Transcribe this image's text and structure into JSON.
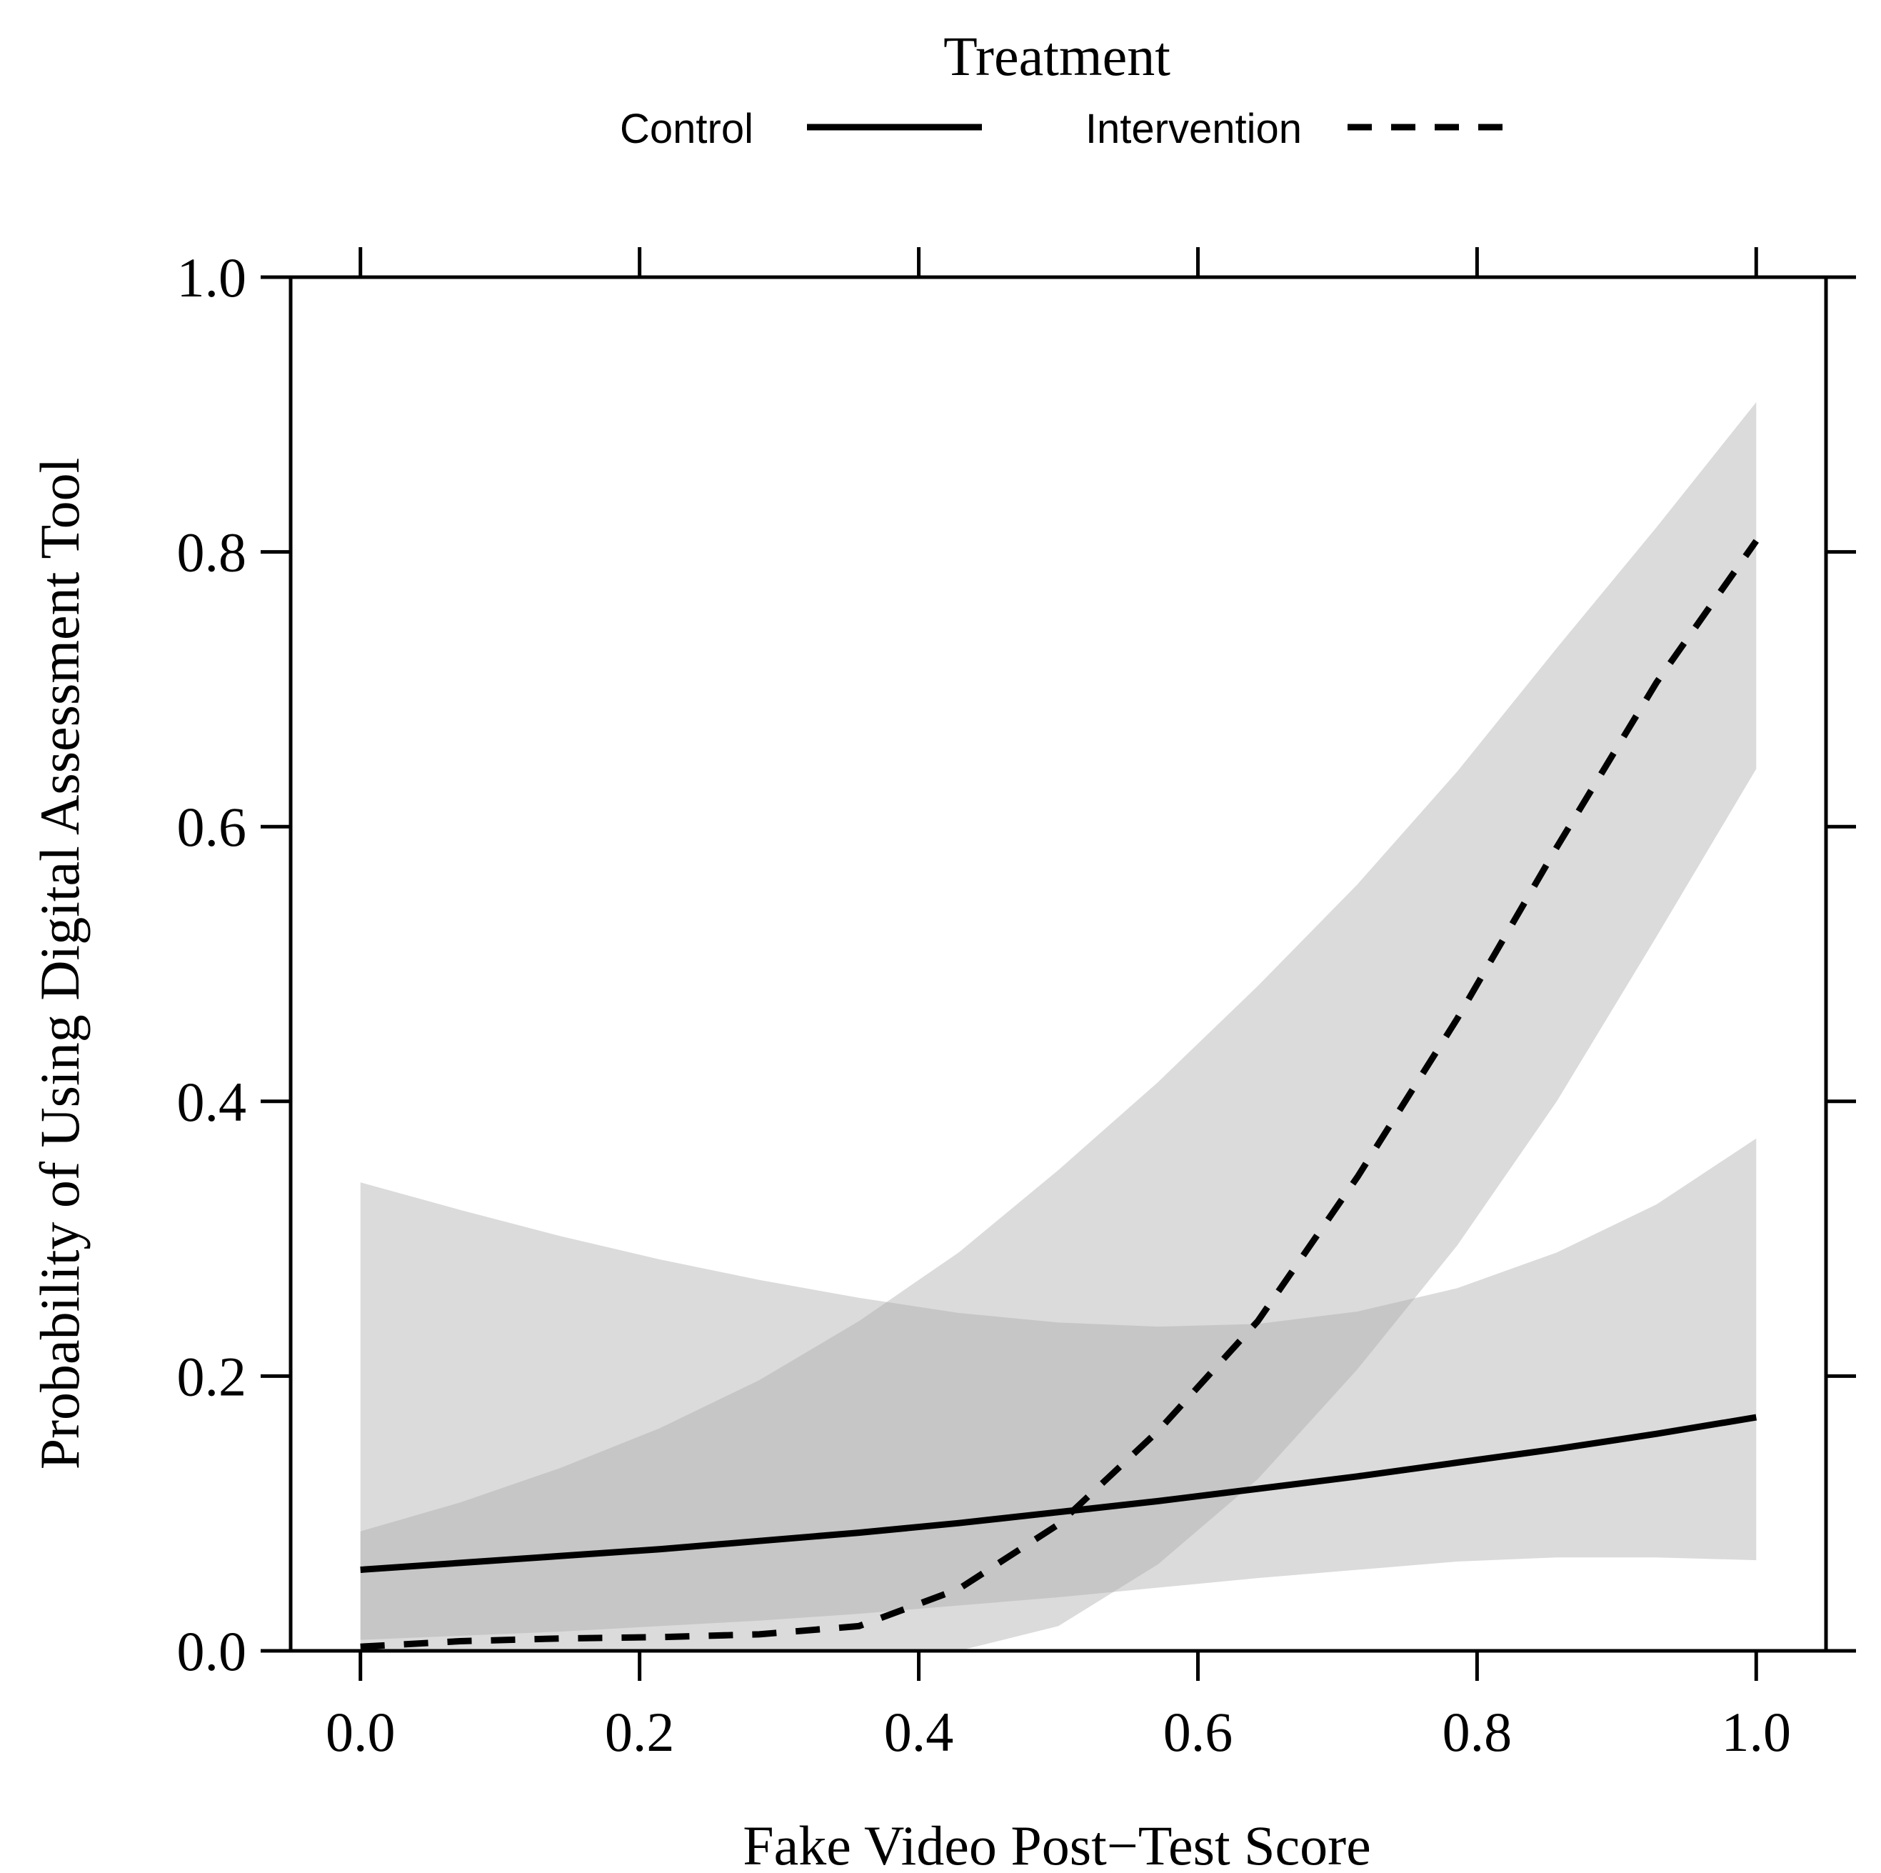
{
  "chart_data": {
    "type": "line",
    "legend": {
      "title": "Treatment",
      "placement": "top",
      "entries": [
        {
          "label": "Control",
          "linestyle": "solid"
        },
        {
          "label": "Intervention",
          "linestyle": "dashed"
        }
      ]
    },
    "xlabel": "Fake Video Post−Test Score",
    "ylabel": "Probability of Using Digital Assessment Tool",
    "xlim": [
      -0.05,
      1.05
    ],
    "ylim": [
      0.0,
      1.0
    ],
    "xticks": [
      "0.0",
      "0.2",
      "0.4",
      "0.6",
      "0.8",
      "1.0"
    ],
    "yticks": [
      "0.0",
      "0.2",
      "0.4",
      "0.6",
      "0.8",
      "1.0"
    ],
    "grid": false,
    "colors": {
      "line": "#000000",
      "band": "#aaaaaa",
      "axis": "#000000"
    },
    "series": [
      {
        "name": "Control",
        "linestyle": "solid",
        "x": [
          0.0,
          0.0714,
          0.1429,
          0.2143,
          0.2857,
          0.3571,
          0.4286,
          0.5,
          0.5714,
          0.6429,
          0.7143,
          0.7857,
          0.8571,
          0.9286,
          1.0
        ],
        "y": [
          0.059,
          0.064,
          0.069,
          0.074,
          0.08,
          0.086,
          0.093,
          0.101,
          0.109,
          0.118,
          0.127,
          0.137,
          0.147,
          0.158,
          0.17
        ],
        "lower": [
          0.008,
          0.011,
          0.014,
          0.018,
          0.022,
          0.027,
          0.033,
          0.039,
          0.046,
          0.053,
          0.059,
          0.065,
          0.068,
          0.068,
          0.066
        ],
        "upper": [
          0.341,
          0.321,
          0.302,
          0.285,
          0.27,
          0.257,
          0.246,
          0.239,
          0.236,
          0.238,
          0.247,
          0.264,
          0.29,
          0.325,
          0.373
        ]
      },
      {
        "name": "Intervention",
        "linestyle": "dashed",
        "x": [
          0.0,
          0.0714,
          0.1429,
          0.2143,
          0.2857,
          0.3571,
          0.4286,
          0.5,
          0.5714,
          0.6429,
          0.7143,
          0.7857,
          0.8571,
          0.9286,
          1.0
        ],
        "y": [
          0.003,
          0.007,
          0.009,
          0.01,
          0.012,
          0.018,
          0.045,
          0.092,
          0.16,
          0.24,
          0.345,
          0.46,
          0.585,
          0.705,
          0.808
        ],
        "lower": [
          0.0,
          0.0,
          0.0,
          0.0,
          0.0,
          0.0,
          0.0,
          0.018,
          0.063,
          0.125,
          0.205,
          0.295,
          0.4,
          0.52,
          0.642
        ],
        "upper": [
          0.087,
          0.108,
          0.133,
          0.162,
          0.197,
          0.24,
          0.29,
          0.35,
          0.414,
          0.484,
          0.558,
          0.64,
          0.73,
          0.818,
          0.909
        ]
      }
    ]
  }
}
